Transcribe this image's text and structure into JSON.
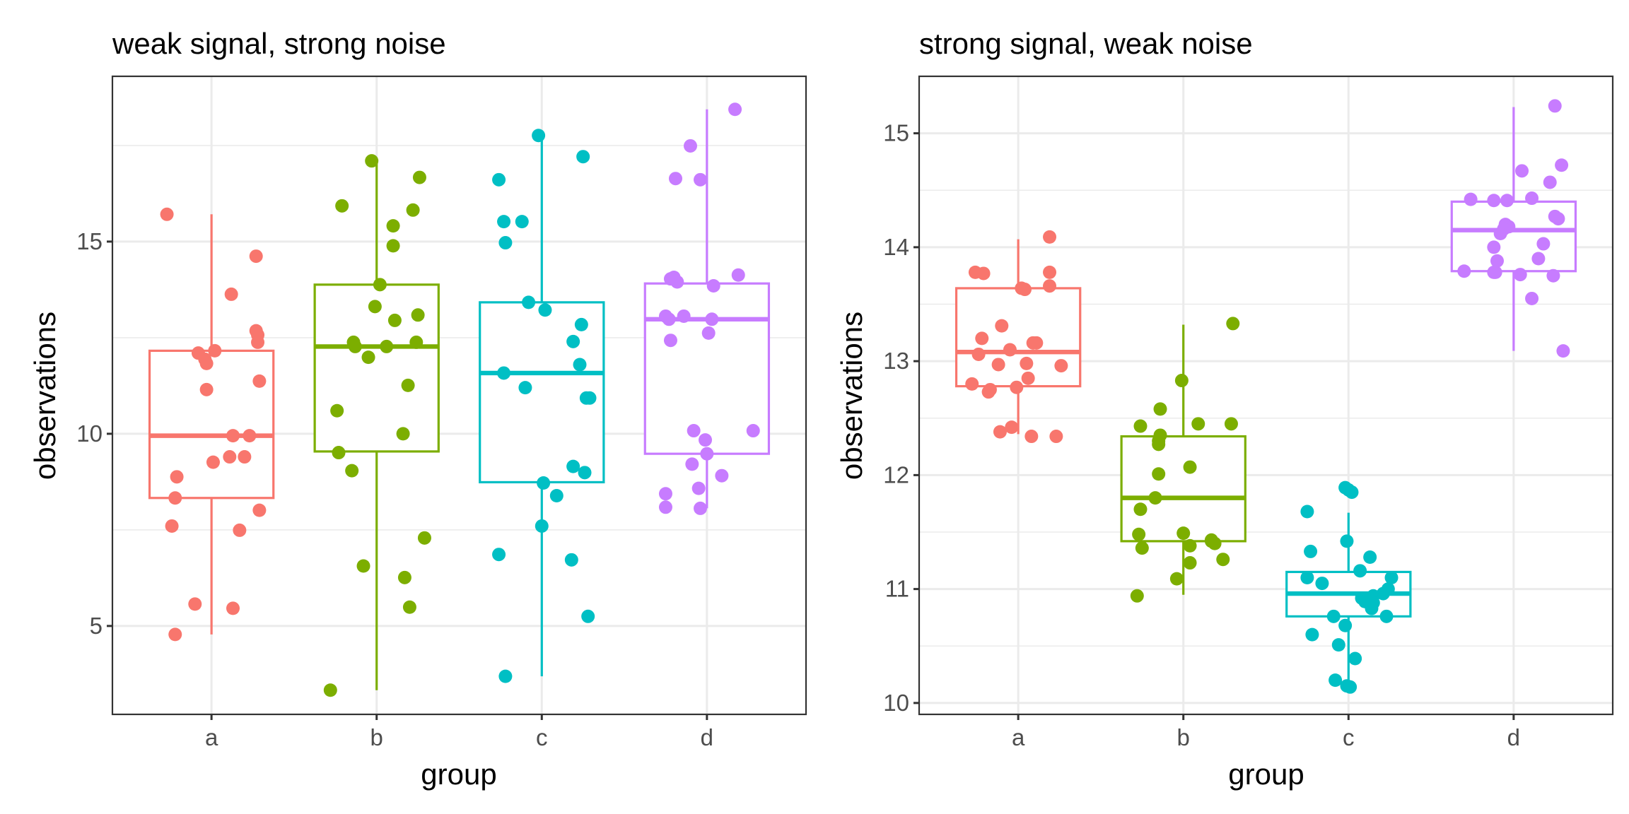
{
  "chart_data": [
    {
      "type": "boxplot",
      "title": "weak signal, strong noise",
      "xlabel": "group",
      "ylabel": "observations",
      "categories": [
        "a",
        "b",
        "c",
        "d"
      ],
      "ylim": [
        2.7,
        19.3
      ],
      "yticks": [
        5,
        10,
        15
      ],
      "yminor": [
        7.5,
        12.5,
        17.5
      ],
      "grid": true,
      "colors": {
        "a": "#F8766D",
        "b": "#7CAE00",
        "c": "#00BFC4",
        "d": "#C77CFF"
      },
      "boxes": [
        {
          "group": "a",
          "whisker_low": 4.78,
          "q1": 8.33,
          "median": 9.95,
          "q3": 12.16,
          "whisker_high": 15.71
        },
        {
          "group": "b",
          "whisker_low": 3.33,
          "q1": 9.54,
          "median": 12.27,
          "q3": 13.88,
          "whisker_high": 17.1
        },
        {
          "group": "c",
          "whisker_low": 3.69,
          "q1": 8.74,
          "median": 11.58,
          "q3": 13.42,
          "whisker_high": 17.76
        },
        {
          "group": "d",
          "whisker_low": 8.06,
          "q1": 9.48,
          "median": 12.98,
          "q3": 13.91,
          "whisker_high": 18.44
        }
      ],
      "points": {
        "a": [
          [
            -0.27,
            15.71
          ],
          [
            0.27,
            14.62
          ],
          [
            0.12,
            13.63
          ],
          [
            0.27,
            12.68
          ],
          [
            0.28,
            12.57
          ],
          [
            0.28,
            12.38
          ],
          [
            -0.08,
            12.1
          ],
          [
            0.02,
            12.16
          ],
          [
            -0.04,
            11.94
          ],
          [
            -0.03,
            11.83
          ],
          [
            -0.03,
            11.15
          ],
          [
            0.29,
            11.37
          ],
          [
            0.13,
            9.95
          ],
          [
            0.23,
            9.95
          ],
          [
            0.01,
            9.26
          ],
          [
            0.11,
            9.4
          ],
          [
            0.2,
            9.4
          ],
          [
            -0.21,
            8.88
          ],
          [
            -0.22,
            8.33
          ],
          [
            0.29,
            8.01
          ],
          [
            -0.24,
            7.6
          ],
          [
            0.17,
            7.49
          ],
          [
            -0.1,
            5.57
          ],
          [
            0.13,
            5.46
          ],
          [
            -0.22,
            4.78
          ]
        ],
        "b": [
          [
            -0.03,
            17.1
          ],
          [
            0.26,
            16.67
          ],
          [
            -0.21,
            15.93
          ],
          [
            0.22,
            15.82
          ],
          [
            0.1,
            15.41
          ],
          [
            0.1,
            14.89
          ],
          [
            0.02,
            13.88
          ],
          [
            -0.01,
            13.31
          ],
          [
            0.11,
            12.95
          ],
          [
            0.25,
            13.09
          ],
          [
            -0.14,
            12.38
          ],
          [
            -0.13,
            12.27
          ],
          [
            0.06,
            12.27
          ],
          [
            0.24,
            12.38
          ],
          [
            -0.05,
            11.99
          ],
          [
            0.19,
            11.26
          ],
          [
            -0.24,
            10.6
          ],
          [
            0.16,
            10.0
          ],
          [
            -0.23,
            9.51
          ],
          [
            -0.15,
            9.04
          ],
          [
            0.29,
            7.29
          ],
          [
            -0.08,
            6.56
          ],
          [
            0.17,
            6.26
          ],
          [
            0.2,
            5.49
          ],
          [
            -0.28,
            3.33
          ]
        ],
        "c": [
          [
            -0.02,
            17.76
          ],
          [
            0.25,
            17.21
          ],
          [
            -0.26,
            16.61
          ],
          [
            -0.23,
            15.52
          ],
          [
            -0.12,
            15.52
          ],
          [
            -0.22,
            14.97
          ],
          [
            -0.08,
            13.42
          ],
          [
            0.02,
            13.22
          ],
          [
            0.24,
            12.84
          ],
          [
            0.19,
            12.4
          ],
          [
            0.23,
            11.8
          ],
          [
            -0.23,
            11.58
          ],
          [
            -0.1,
            11.2
          ],
          [
            0.27,
            10.93
          ],
          [
            0.29,
            10.93
          ],
          [
            0.19,
            9.15
          ],
          [
            0.26,
            8.99
          ],
          [
            0.01,
            8.72
          ],
          [
            0.09,
            8.39
          ],
          [
            0.0,
            7.6
          ],
          [
            -0.26,
            6.86
          ],
          [
            0.18,
            6.72
          ],
          [
            0.28,
            5.25
          ],
          [
            -0.22,
            3.69
          ]
        ],
        "d": [
          [
            0.17,
            18.44
          ],
          [
            -0.1,
            17.49
          ],
          [
            -0.19,
            16.64
          ],
          [
            -0.04,
            16.61
          ],
          [
            -0.22,
            14.03
          ],
          [
            -0.18,
            13.95
          ],
          [
            0.19,
            14.13
          ],
          [
            -0.2,
            14.07
          ],
          [
            0.04,
            13.85
          ],
          [
            -0.25,
            13.06
          ],
          [
            -0.14,
            13.06
          ],
          [
            -0.23,
            12.98
          ],
          [
            0.03,
            12.98
          ],
          [
            0.01,
            12.62
          ],
          [
            -0.22,
            12.43
          ],
          [
            -0.08,
            10.08
          ],
          [
            0.28,
            10.08
          ],
          [
            -0.01,
            9.84
          ],
          [
            0.0,
            9.48
          ],
          [
            -0.09,
            9.21
          ],
          [
            0.09,
            8.91
          ],
          [
            -0.05,
            8.58
          ],
          [
            -0.25,
            8.44
          ],
          [
            -0.25,
            8.09
          ],
          [
            -0.04,
            8.06
          ]
        ]
      }
    },
    {
      "type": "boxplot",
      "title": "strong signal, weak noise",
      "xlabel": "group",
      "ylabel": "observations",
      "categories": [
        "a",
        "b",
        "c",
        "d"
      ],
      "ylim": [
        9.9,
        15.5
      ],
      "yticks": [
        10,
        11,
        12,
        13,
        14,
        15
      ],
      "yminor": [
        10.5,
        11.5,
        12.5,
        13.5,
        14.5
      ],
      "grid": true,
      "colors": {
        "a": "#F8766D",
        "b": "#7CAE00",
        "c": "#00BFC4",
        "d": "#C77CFF"
      },
      "boxes": [
        {
          "group": "a",
          "whisker_low": 12.36,
          "q1": 12.78,
          "median": 13.08,
          "q3": 13.64,
          "whisker_high": 14.07
        },
        {
          "group": "b",
          "whisker_low": 10.95,
          "q1": 11.42,
          "median": 11.8,
          "q3": 12.34,
          "whisker_high": 13.32
        },
        {
          "group": "c",
          "whisker_low": 10.15,
          "q1": 10.76,
          "median": 10.96,
          "q3": 11.15,
          "whisker_high": 11.67
        },
        {
          "group": "d",
          "whisker_low": 13.09,
          "q1": 13.79,
          "median": 14.15,
          "q3": 14.4,
          "whisker_high": 15.23
        }
      ],
      "points": {
        "a": [
          [
            0.19,
            14.09
          ],
          [
            -0.26,
            13.78
          ],
          [
            -0.21,
            13.77
          ],
          [
            0.19,
            13.78
          ],
          [
            0.02,
            13.64
          ],
          [
            0.04,
            13.63
          ],
          [
            0.19,
            13.66
          ],
          [
            -0.1,
            13.31
          ],
          [
            -0.22,
            13.2
          ],
          [
            -0.05,
            13.1
          ],
          [
            0.09,
            13.16
          ],
          [
            0.11,
            13.16
          ],
          [
            -0.24,
            13.06
          ],
          [
            0.05,
            12.98
          ],
          [
            -0.12,
            12.97
          ],
          [
            0.26,
            12.96
          ],
          [
            0.06,
            12.85
          ],
          [
            -0.28,
            12.8
          ],
          [
            -0.17,
            12.75
          ],
          [
            -0.18,
            12.73
          ],
          [
            -0.01,
            12.77
          ],
          [
            -0.04,
            12.42
          ],
          [
            -0.11,
            12.38
          ],
          [
            0.08,
            12.34
          ],
          [
            0.23,
            12.34
          ]
        ],
        "b": [
          [
            0.3,
            13.33
          ],
          [
            -0.01,
            12.83
          ],
          [
            -0.14,
            12.58
          ],
          [
            -0.26,
            12.43
          ],
          [
            0.09,
            12.45
          ],
          [
            0.29,
            12.45
          ],
          [
            -0.14,
            12.35
          ],
          [
            -0.15,
            12.3
          ],
          [
            -0.15,
            12.27
          ],
          [
            0.04,
            12.07
          ],
          [
            -0.15,
            12.01
          ],
          [
            -0.17,
            11.8
          ],
          [
            -0.26,
            11.7
          ],
          [
            -0.27,
            11.48
          ],
          [
            0.0,
            11.49
          ],
          [
            0.04,
            11.38
          ],
          [
            0.17,
            11.42
          ],
          [
            0.19,
            11.4
          ],
          [
            0.17,
            11.43
          ],
          [
            -0.25,
            11.36
          ],
          [
            0.24,
            11.26
          ],
          [
            0.04,
            11.23
          ],
          [
            -0.04,
            11.09
          ],
          [
            -0.28,
            10.94
          ]
        ],
        "c": [
          [
            -0.02,
            11.89
          ],
          [
            0.0,
            11.87
          ],
          [
            0.02,
            11.85
          ],
          [
            -0.25,
            11.68
          ],
          [
            -0.01,
            11.42
          ],
          [
            -0.23,
            11.33
          ],
          [
            0.13,
            11.28
          ],
          [
            0.07,
            11.16
          ],
          [
            -0.25,
            11.1
          ],
          [
            0.26,
            11.1
          ],
          [
            -0.16,
            11.05
          ],
          [
            0.24,
            11.0
          ],
          [
            0.21,
            10.96
          ],
          [
            0.15,
            10.94
          ],
          [
            0.08,
            10.92
          ],
          [
            0.1,
            10.89
          ],
          [
            0.15,
            10.88
          ],
          [
            0.14,
            10.83
          ],
          [
            -0.09,
            10.76
          ],
          [
            0.23,
            10.76
          ],
          [
            -0.02,
            10.68
          ],
          [
            -0.22,
            10.6
          ],
          [
            -0.06,
            10.51
          ],
          [
            0.04,
            10.39
          ],
          [
            -0.08,
            10.2
          ],
          [
            -0.01,
            10.15
          ],
          [
            0.01,
            10.14
          ]
        ],
        "d": [
          [
            0.25,
            15.24
          ],
          [
            0.29,
            14.72
          ],
          [
            0.05,
            14.67
          ],
          [
            0.22,
            14.57
          ],
          [
            -0.26,
            14.42
          ],
          [
            -0.12,
            14.41
          ],
          [
            -0.04,
            14.41
          ],
          [
            0.11,
            14.43
          ],
          [
            0.25,
            14.27
          ],
          [
            0.27,
            14.25
          ],
          [
            -0.05,
            14.2
          ],
          [
            -0.03,
            14.18
          ],
          [
            -0.06,
            14.16
          ],
          [
            -0.08,
            14.12
          ],
          [
            0.18,
            14.03
          ],
          [
            -0.12,
            14.0
          ],
          [
            0.15,
            13.9
          ],
          [
            -0.1,
            13.88
          ],
          [
            -0.3,
            13.79
          ],
          [
            -0.11,
            13.78
          ],
          [
            -0.12,
            13.78
          ],
          [
            0.04,
            13.76
          ],
          [
            0.24,
            13.75
          ],
          [
            0.11,
            13.55
          ],
          [
            0.3,
            13.09
          ]
        ]
      }
    }
  ]
}
